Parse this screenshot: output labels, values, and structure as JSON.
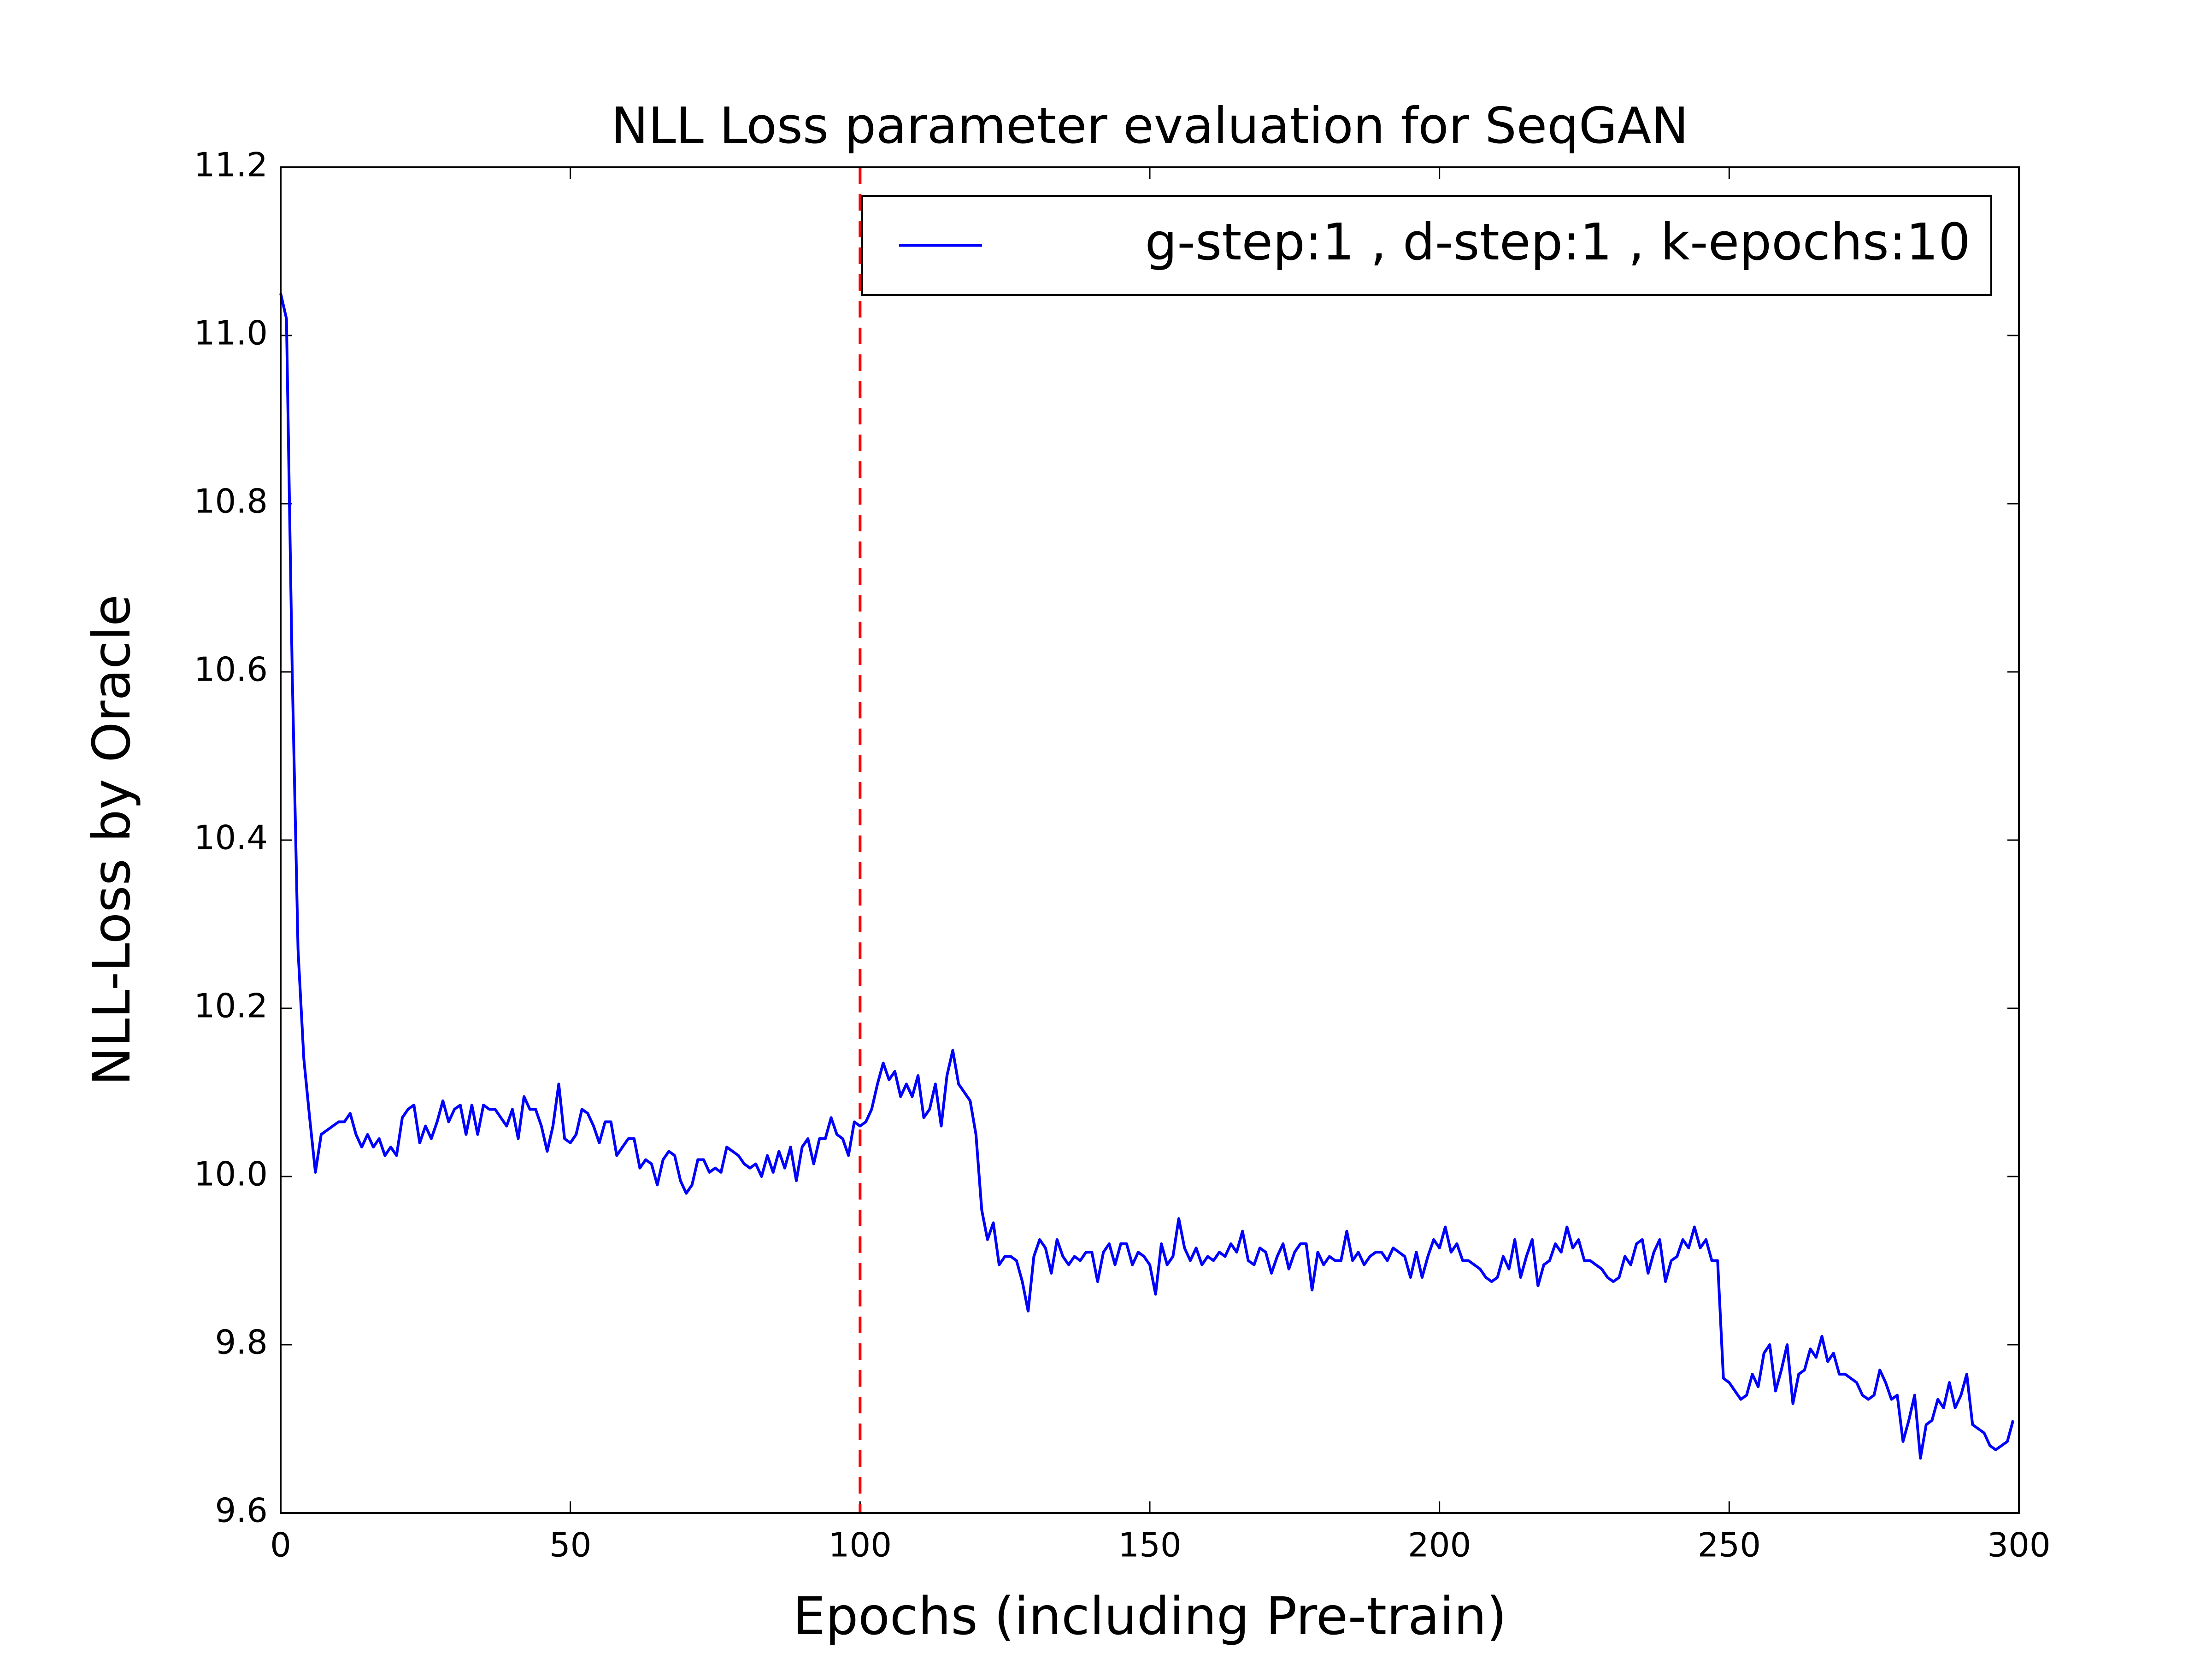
{
  "chart_data": {
    "type": "line",
    "title": "NLL Loss parameter evaluation for SeqGAN",
    "xlabel": "Epochs (including Pre-train)",
    "ylabel": "NLL-Loss by Oracle",
    "xlim": [
      0,
      300
    ],
    "ylim": [
      9.6,
      11.2
    ],
    "xticks": [
      0,
      50,
      100,
      150,
      200,
      250,
      300
    ],
    "yticks": [
      9.6,
      9.8,
      {
        "value": 10.0,
        "label": "10.0"
      },
      10.2,
      10.4,
      10.6,
      10.8,
      {
        "value": 11.0,
        "label": "11.0"
      },
      11.2
    ],
    "legend": "upper right",
    "vline": {
      "x": 100,
      "color": "#ff0000"
    },
    "x": [
      0,
      1,
      2,
      3,
      4,
      5,
      6,
      7,
      8,
      9,
      10,
      11,
      12,
      13,
      14,
      15,
      16,
      17,
      18,
      19,
      20,
      21,
      22,
      23,
      24,
      25,
      26,
      27,
      28,
      29,
      30,
      31,
      32,
      33,
      34,
      35,
      36,
      37,
      38,
      39,
      40,
      41,
      42,
      43,
      44,
      45,
      46,
      47,
      48,
      49,
      50,
      51,
      52,
      53,
      54,
      55,
      56,
      57,
      58,
      59,
      60,
      61,
      62,
      63,
      64,
      65,
      66,
      67,
      68,
      69,
      70,
      71,
      72,
      73,
      74,
      75,
      76,
      77,
      78,
      79,
      80,
      81,
      82,
      83,
      84,
      85,
      86,
      87,
      88,
      89,
      90,
      91,
      92,
      93,
      94,
      95,
      96,
      97,
      98,
      99,
      100,
      101,
      102,
      103,
      104,
      105,
      106,
      107,
      108,
      109,
      110,
      111,
      112,
      113,
      114,
      115,
      116,
      117,
      118,
      119,
      120,
      121,
      122,
      123,
      124,
      125,
      126,
      127,
      128,
      129,
      130,
      131,
      132,
      133,
      134,
      135,
      136,
      137,
      138,
      139,
      140,
      141,
      142,
      143,
      144,
      145,
      146,
      147,
      148,
      149,
      150,
      151,
      152,
      153,
      154,
      155,
      156,
      157,
      158,
      159,
      160,
      161,
      162,
      163,
      164,
      165,
      166,
      167,
      168,
      169,
      170,
      171,
      172,
      173,
      174,
      175,
      176,
      177,
      178,
      179,
      180,
      181,
      182,
      183,
      184,
      185,
      186,
      187,
      188,
      189,
      190,
      191,
      192,
      193,
      194,
      195,
      196,
      197,
      198,
      199,
      200,
      201,
      202,
      203,
      204,
      205,
      206,
      207,
      208,
      209,
      210,
      211,
      212,
      213,
      214,
      215,
      216,
      217,
      218,
      219,
      220,
      221,
      222,
      223,
      224,
      225,
      226,
      227,
      228,
      229,
      230,
      231,
      232,
      233,
      234,
      235,
      236,
      237,
      238,
      239,
      240,
      241,
      242,
      243,
      244,
      245,
      246,
      247,
      248,
      249,
      250,
      251,
      252,
      253,
      254,
      255,
      256,
      257,
      258,
      259,
      260,
      261,
      262,
      263,
      264,
      265,
      266,
      267,
      268,
      269,
      270,
      271,
      272,
      273,
      274,
      275,
      276,
      277,
      278,
      279,
      280,
      281,
      282,
      283,
      284,
      285,
      286,
      287,
      288,
      289,
      290,
      291,
      292,
      293,
      294,
      295,
      296,
      297,
      298,
      299
    ],
    "series": [
      {
        "name": "g-step:1 , d-step:1 , k-epochs:10",
        "color": "#0000ff",
        "values": [
          11.05,
          11.02,
          10.6,
          10.27,
          10.14,
          10.07,
          10.005,
          10.05,
          10.055,
          10.06,
          10.065,
          10.065,
          10.075,
          10.05,
          10.035,
          10.05,
          10.035,
          10.045,
          10.025,
          10.035,
          10.025,
          10.07,
          10.08,
          10.085,
          10.04,
          10.06,
          10.045,
          10.065,
          10.09,
          10.065,
          10.08,
          10.085,
          10.05,
          10.085,
          10.05,
          10.085,
          10.08,
          10.08,
          10.07,
          10.06,
          10.08,
          10.045,
          10.095,
          10.08,
          10.08,
          10.06,
          10.03,
          10.06,
          10.11,
          10.045,
          10.04,
          10.05,
          10.08,
          10.075,
          10.06,
          10.04,
          10.065,
          10.065,
          10.025,
          10.035,
          10.045,
          10.045,
          10.01,
          10.02,
          10.015,
          9.99,
          10.02,
          10.03,
          10.025,
          9.995,
          9.98,
          9.99,
          10.02,
          10.02,
          10.005,
          10.01,
          10.005,
          10.035,
          10.03,
          10.025,
          10.015,
          10.01,
          10.015,
          10.0,
          10.025,
          10.005,
          10.03,
          10.01,
          10.035,
          9.995,
          10.035,
          10.045,
          10.015,
          10.045,
          10.045,
          10.07,
          10.05,
          10.045,
          10.025,
          10.065,
          10.06,
          10.065,
          10.08,
          10.11,
          10.135,
          10.115,
          10.125,
          10.095,
          10.11,
          10.095,
          10.12,
          10.07,
          10.08,
          10.11,
          10.06,
          10.12,
          10.15,
          10.11,
          10.1,
          10.09,
          10.05,
          9.96,
          9.925,
          9.945,
          9.895,
          9.905,
          9.905,
          9.9,
          9.875,
          9.84,
          9.905,
          9.925,
          9.915,
          9.885,
          9.925,
          9.905,
          9.895,
          9.905,
          9.9,
          9.91,
          9.91,
          9.875,
          9.91,
          9.92,
          9.895,
          9.92,
          9.92,
          9.895,
          9.91,
          9.905,
          9.895,
          9.86,
          9.92,
          9.895,
          9.905,
          9.95,
          9.915,
          9.9,
          9.915,
          9.895,
          9.905,
          9.9,
          9.91,
          9.905,
          9.92,
          9.91,
          9.935,
          9.9,
          9.895,
          9.915,
          9.91,
          9.885,
          9.905,
          9.92,
          9.89,
          9.91,
          9.92,
          9.92,
          9.865,
          9.91,
          9.895,
          9.905,
          9.9,
          9.9,
          9.935,
          9.9,
          9.91,
          9.895,
          9.905,
          9.91,
          9.91,
          9.9,
          9.915,
          9.91,
          9.905,
          9.88,
          9.91,
          9.88,
          9.905,
          9.925,
          9.915,
          9.94,
          9.91,
          9.92,
          9.9,
          9.9,
          9.895,
          9.89,
          9.88,
          9.875,
          9.88,
          9.905,
          9.89,
          9.925,
          9.88,
          9.905,
          9.925,
          9.87,
          9.895,
          9.9,
          9.92,
          9.91,
          9.94,
          9.915,
          9.925,
          9.9,
          9.9,
          9.895,
          9.89,
          9.88,
          9.875,
          9.88,
          9.905,
          9.895,
          9.92,
          9.925,
          9.885,
          9.91,
          9.925,
          9.875,
          9.9,
          9.905,
          9.925,
          9.915,
          9.94,
          9.915,
          9.925,
          9.9,
          9.9,
          9.76,
          9.755,
          9.745,
          9.735,
          9.74,
          9.765,
          9.75,
          9.79,
          9.8,
          9.745,
          9.77,
          9.8,
          9.73,
          9.765,
          9.77,
          9.795,
          9.785,
          9.81,
          9.78,
          9.79,
          9.765,
          9.765,
          9.76,
          9.755,
          9.74,
          9.735,
          9.74,
          9.77,
          9.755,
          9.735,
          9.74,
          9.685,
          9.71,
          9.74,
          9.665,
          9.705,
          9.71,
          9.735,
          9.725,
          9.755,
          9.725,
          9.74,
          9.765,
          9.705,
          9.7,
          9.695,
          9.68,
          9.675,
          9.68,
          9.685,
          9.71
        ]
      }
    ]
  }
}
